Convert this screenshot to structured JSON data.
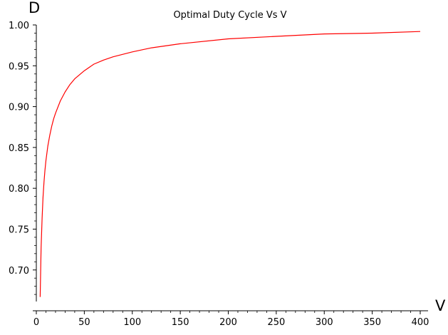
{
  "chart_data": {
    "type": "line",
    "title": "Optimal Duty Cycle Vs V",
    "xlabel": "V",
    "ylabel": "D",
    "xlim": [
      0,
      400
    ],
    "ylim": [
      0.66,
      1.0
    ],
    "x_ticks": [
      0,
      50,
      100,
      150,
      200,
      250,
      300,
      350,
      400
    ],
    "y_ticks": [
      0.7,
      0.75,
      0.8,
      0.85,
      0.9,
      0.95,
      1.0
    ],
    "x_tick_labels": [
      "0",
      "50",
      "100",
      "150",
      "200",
      "250",
      "300",
      "350",
      "400"
    ],
    "y_tick_labels": [
      "0.70",
      "0.75",
      "0.80",
      "0.85",
      "0.90",
      "0.95",
      "1.00"
    ],
    "grid": false,
    "series": [
      {
        "color": "#ff0000",
        "x": [
          4,
          5,
          6,
          7,
          8,
          9,
          10,
          12,
          14,
          16,
          18,
          20,
          25,
          30,
          35,
          40,
          50,
          60,
          70,
          80,
          100,
          120,
          150,
          200,
          250,
          300,
          350,
          400
        ],
        "y": [
          0.667,
          0.727,
          0.763,
          0.789,
          0.808,
          0.822,
          0.834,
          0.852,
          0.865,
          0.876,
          0.885,
          0.892,
          0.907,
          0.918,
          0.927,
          0.934,
          0.944,
          0.952,
          0.957,
          0.961,
          0.967,
          0.972,
          0.977,
          0.983,
          0.986,
          0.989,
          0.99,
          0.992
        ]
      }
    ]
  }
}
